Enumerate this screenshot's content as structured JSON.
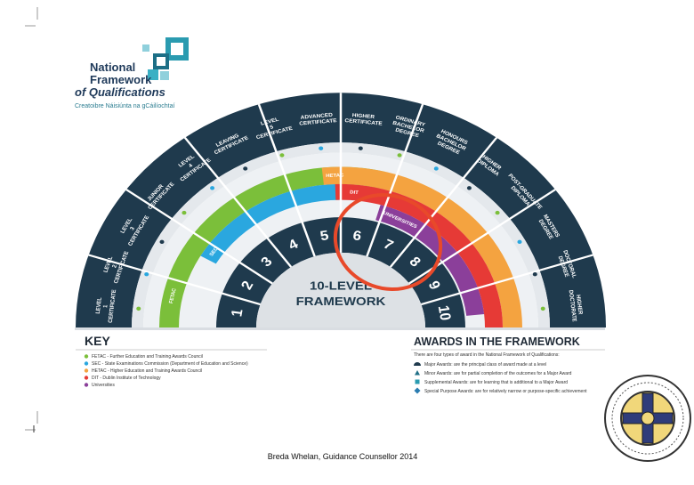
{
  "logo": {
    "line1": "National",
    "line2": "Framework",
    "line3": "of Qualifications",
    "subtitle": "Creatoibre Náisiúnta na gCáilíochtaí"
  },
  "outer_ring": [
    "LEVEL 1 CERTIFICATE",
    "LEVEL 2 CERTIFICATE",
    "LEVEL 3 CERTIFICATE",
    "JUNIOR CERTIFICATE",
    "LEVEL 4 CERTIFICATE",
    "LEAVING CERTIFICATE",
    "LEVEL 5 CERTIFICATE",
    "ADVANCED CERTIFICATE",
    "HIGHER CERTIFICATE",
    "ORDINARY BACHELOR DEGREE",
    "HONOURS BACHELOR DEGREE",
    "HIGHER DIPLOMA",
    "POST-GRADUATE DIPLOMA",
    "MASTERS DEGREE",
    "DOCTORAL DEGREE",
    "HIGHER DOCTORATE"
  ],
  "bands": {
    "fetac": "FETAC",
    "sec": "SEC",
    "hetac": "HETAC",
    "dit": "DIT",
    "universities": "UNIVERSITIES"
  },
  "levels": [
    "1",
    "2",
    "3",
    "4",
    "5",
    "6",
    "7",
    "8",
    "9",
    "10"
  ],
  "center": {
    "line1": "10-LEVEL",
    "line2": "FRAMEWORK"
  },
  "key": {
    "title": "KEY",
    "items": [
      "FETAC - Further Education and Training Awards Council",
      "SEC - State Examinations Commission (Department of Education and Science)",
      "HETAC - Higher Education and Training Awards Council",
      "DIT - Dublin Institute of Technology",
      "Universities"
    ]
  },
  "awards": {
    "title": "AWARDS IN THE FRAMEWORK",
    "intro": "There are four types of award in the National Framework of Qualifications:",
    "items": [
      "Major Awards: are the principal class of award made at a level",
      "Minor Awards: are for partial completion of the outcomes for a Major Award",
      "Supplemental Awards: are for learning that is additional to a Major Award",
      "Special Purpose Awards: are for relatively narrow or purpose-specific achievement"
    ]
  },
  "footer": "Breda Whelan, Guidance Counsellor  2014"
}
